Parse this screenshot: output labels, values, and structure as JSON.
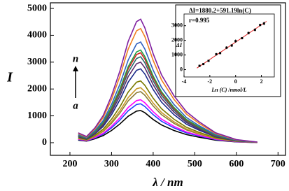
{
  "chart_data": [
    {
      "type": "line",
      "x_label": "λ / nm",
      "y_label": "I",
      "annotations": [
        "n",
        "a"
      ],
      "x": [
        220,
        240,
        260,
        280,
        300,
        320,
        340,
        360,
        370,
        380,
        400,
        420,
        450,
        480,
        510,
        550,
        600,
        650
      ],
      "xlim": [
        153,
        718
      ],
      "xticks": [
        200,
        300,
        400,
        500,
        600,
        700
      ],
      "ylim": [
        -470,
        5210
      ],
      "yticks": [
        0,
        1000,
        2000,
        3000,
        4000,
        5000
      ],
      "series": [
        {
          "color": "#000000",
          "values": [
            96,
            60,
            144,
            264,
            456,
            696,
            984,
            1176,
            1200,
            1116,
            864,
            660,
            456,
            300,
            204,
            96,
            30,
            6
          ]
        },
        {
          "color": "#1f3fff",
          "values": [
            116,
            73,
            174,
            319,
            551,
            841,
            1189,
            1421,
            1450,
            1349,
            1044,
            798,
            551,
            363,
            247,
            116,
            36,
            7
          ]
        },
        {
          "color": "#ff00ff",
          "values": [
            128,
            80,
            192,
            352,
            608,
            928,
            1312,
            1568,
            1600,
            1488,
            1152,
            880,
            608,
            400,
            272,
            128,
            40,
            8
          ]
        },
        {
          "color": "#8b7d3a",
          "values": [
            152,
            95,
            228,
            418,
            722,
            1102,
            1558,
            1862,
            1900,
            1767,
            1368,
            1045,
            722,
            475,
            323,
            152,
            48,
            10
          ]
        },
        {
          "color": "#c89a2a",
          "values": [
            164,
            103,
            246,
            451,
            779,
            1189,
            1681,
            2009,
            2050,
            1907,
            1476,
            1128,
            779,
            513,
            349,
            164,
            51,
            10
          ]
        },
        {
          "color": "#7a7a00",
          "values": [
            184,
            115,
            276,
            506,
            874,
            1334,
            1886,
            2254,
            2300,
            2139,
            1656,
            1265,
            874,
            575,
            391,
            184,
            58,
            12
          ]
        },
        {
          "color": "#1a2a8a",
          "values": [
            220,
            138,
            330,
            605,
            1045,
            1595,
            2255,
            2695,
            2750,
            2558,
            1980,
            1513,
            1045,
            688,
            468,
            220,
            69,
            14
          ]
        },
        {
          "color": "#5a2a6a",
          "values": [
            240,
            150,
            360,
            660,
            1140,
            1740,
            2460,
            2940,
            3000,
            2790,
            2160,
            1650,
            1140,
            750,
            510,
            240,
            75,
            15
          ]
        },
        {
          "color": "#2a6a6a",
          "values": [
            256,
            160,
            384,
            704,
            1216,
            1856,
            2624,
            3136,
            3200,
            2976,
            2304,
            1760,
            1216,
            800,
            544,
            256,
            80,
            16
          ]
        },
        {
          "color": "#d02020",
          "values": [
            268,
            168,
            402,
            737,
            1273,
            1943,
            2747,
            3283,
            3350,
            3116,
            2412,
            1843,
            1273,
            838,
            570,
            268,
            84,
            17
          ]
        },
        {
          "color": "#20a040",
          "values": [
            276,
            173,
            414,
            759,
            1311,
            2001,
            2829,
            3381,
            3450,
            3209,
            2484,
            1898,
            1311,
            863,
            587,
            276,
            86,
            17
          ]
        },
        {
          "color": "#3060c0",
          "values": [
            300,
            188,
            450,
            825,
            1425,
            2175,
            3075,
            3675,
            3750,
            3488,
            2700,
            2063,
            1425,
            938,
            638,
            300,
            94,
            19
          ]
        },
        {
          "color": "#f08020",
          "values": [
            340,
            213,
            510,
            935,
            1615,
            2465,
            3485,
            4165,
            4250,
            3953,
            3060,
            2338,
            1615,
            1063,
            723,
            340,
            106,
            21
          ]
        },
        {
          "color": "#8020a0",
          "values": [
            368,
            230,
            552,
            1012,
            1748,
            2668,
            3772,
            4508,
            4600,
            4278,
            3312,
            2530,
            1748,
            1150,
            782,
            368,
            115,
            23
          ]
        }
      ]
    },
    {
      "type": "scatter",
      "equation": "ΔI=1880.2+591.19ln(C)",
      "r_label": "r=0.995",
      "x_label": "Ln (C) /nmol/L",
      "y_label": "ΔI",
      "x": [
        -2.8,
        -2.5,
        -2.1,
        -1.5,
        -1.2,
        -0.7,
        -0.3,
        0,
        0.5,
        1.0,
        1.5,
        1.9,
        2.2
      ],
      "values": [
        260,
        380,
        600,
        1050,
        1130,
        1500,
        1650,
        1950,
        2150,
        2500,
        2720,
        3050,
        3150
      ],
      "errors": [
        80,
        70,
        60,
        90,
        80,
        100,
        90,
        110,
        80,
        90,
        100,
        80,
        120
      ],
      "color": "#000000",
      "fit_line": {
        "intercept": 1880.2,
        "slope": 591.19,
        "color": "#e02020"
      },
      "xlim": [
        -4,
        3
      ],
      "xticks": [
        -4,
        -2,
        0,
        2
      ],
      "ylim": [
        -500,
        3800
      ],
      "yticks": [
        0,
        1000,
        2000,
        3000
      ]
    }
  ]
}
